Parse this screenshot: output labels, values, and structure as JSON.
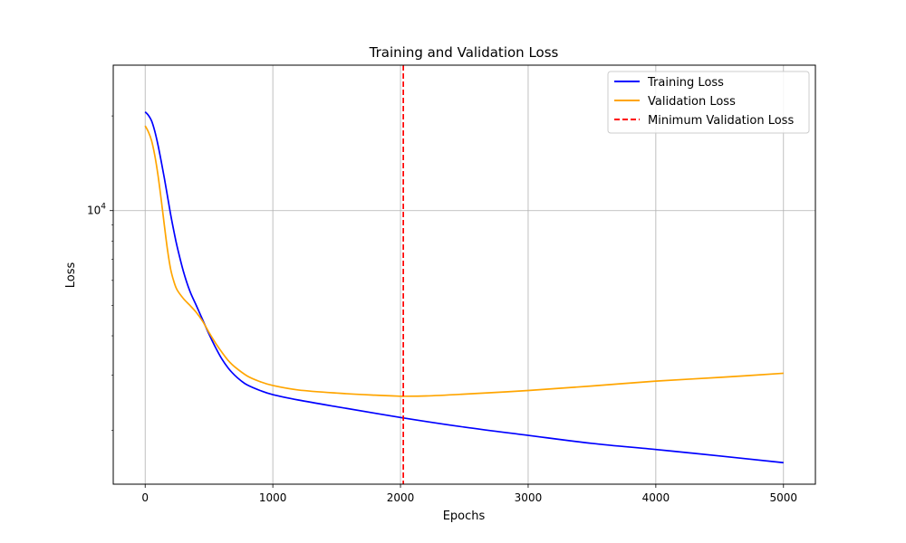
{
  "chart_data": {
    "type": "line",
    "title": "Training and Validation Loss",
    "xlabel": "Epochs",
    "ylabel": "Loss",
    "xlim": [
      -250,
      5250
    ],
    "ylim": [
      1350,
      29000
    ],
    "yscale": "log",
    "grid": true,
    "legend_position": "top-right",
    "x_ticks": [
      0,
      1000,
      2000,
      3000,
      4000,
      5000
    ],
    "x_tick_labels": [
      "0",
      "1000",
      "2000",
      "3000",
      "4000",
      "5000"
    ],
    "y_major_ticks": [
      10000
    ],
    "y_major_label_base": "10",
    "y_major_label_exp": "4",
    "y_minor_ticks": [
      2000,
      3000,
      4000,
      5000,
      6000,
      7000,
      8000,
      9000,
      20000
    ],
    "series": [
      {
        "name": "Training Loss",
        "color": "#0000ff",
        "x": [
          0,
          25,
          50,
          75,
          100,
          125,
          150,
          175,
          200,
          225,
          250,
          300,
          350,
          400,
          450,
          500,
          550,
          600,
          650,
          700,
          750,
          800,
          900,
          1000,
          1200,
          1500,
          2000,
          2500,
          3000,
          3500,
          4000,
          4500,
          5000
        ],
        "y": [
          20600,
          20100,
          19300,
          17900,
          16200,
          14400,
          12700,
          11100,
          9700,
          8600,
          7700,
          6400,
          5550,
          5000,
          4500,
          4050,
          3680,
          3380,
          3160,
          3000,
          2880,
          2790,
          2680,
          2600,
          2500,
          2380,
          2200,
          2050,
          1930,
          1820,
          1740,
          1660,
          1580
        ]
      },
      {
        "name": "Validation Loss",
        "color": "#ffa500",
        "x": [
          0,
          25,
          50,
          75,
          100,
          125,
          150,
          175,
          200,
          225,
          250,
          300,
          350,
          400,
          450,
          500,
          550,
          600,
          650,
          700,
          800,
          900,
          1000,
          1200,
          1500,
          1800,
          2000,
          2022,
          2200,
          2500,
          3000,
          3500,
          4000,
          4500,
          5000
        ],
        "y": [
          18600,
          17800,
          16700,
          15000,
          13000,
          10900,
          9000,
          7500,
          6500,
          5950,
          5600,
          5250,
          5000,
          4750,
          4450,
          4100,
          3800,
          3550,
          3340,
          3190,
          2980,
          2860,
          2780,
          2690,
          2630,
          2590,
          2570,
          2570,
          2575,
          2610,
          2680,
          2770,
          2870,
          2950,
          3040
        ]
      }
    ],
    "vline": {
      "name": "Minimum Validation Loss",
      "x": 2022,
      "color": "#ff0000"
    }
  }
}
